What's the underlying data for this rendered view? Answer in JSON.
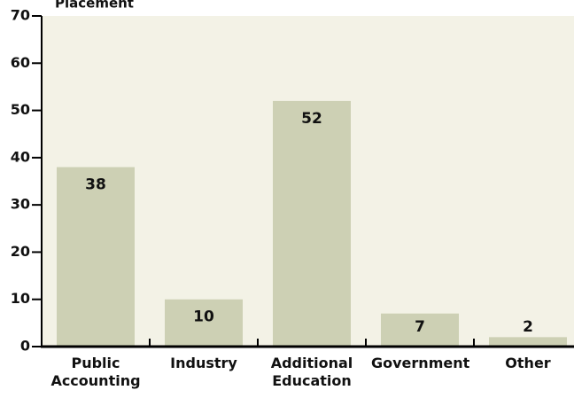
{
  "chart_data": {
    "type": "bar",
    "title": "Placement",
    "categories": [
      "Public Accounting",
      "Industry",
      "Additional Education",
      "Government",
      "Other"
    ],
    "values": [
      38,
      10,
      52,
      7,
      2
    ],
    "color": "#cdd0b4",
    "ylim": [
      0,
      70
    ],
    "yticks": [
      0,
      10,
      20,
      30,
      40,
      50,
      60,
      70
    ],
    "grid": false
  }
}
